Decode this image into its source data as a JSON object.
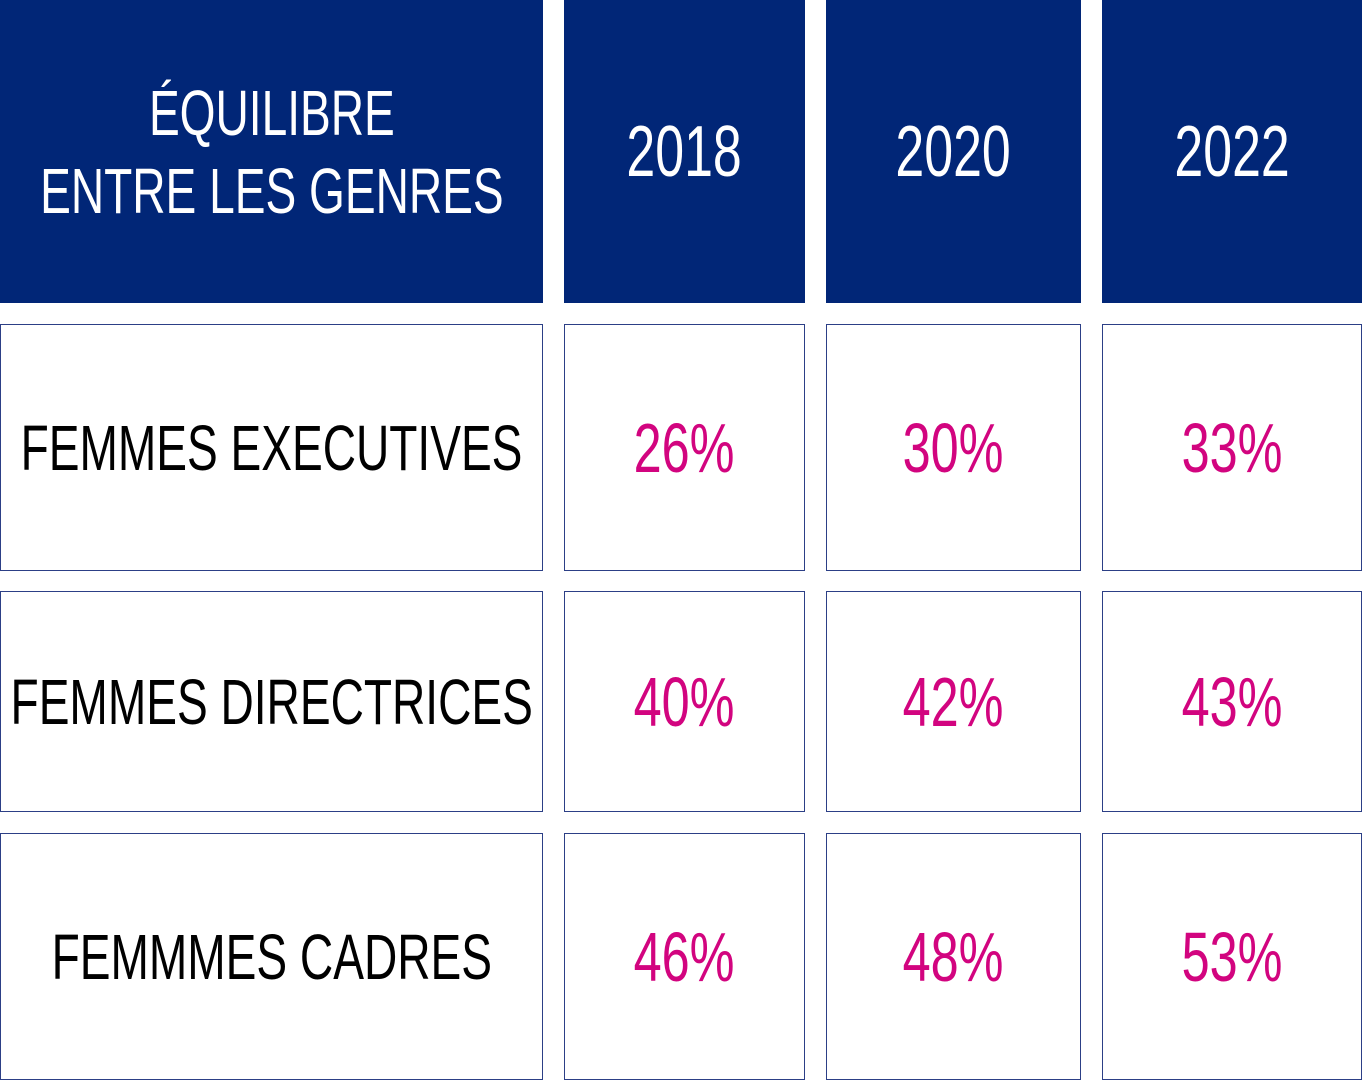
{
  "chart_data": {
    "type": "table",
    "title_lines": [
      "ÉQUILIBRE",
      "ENTRE LES GENRES"
    ],
    "columns": [
      "2018",
      "2020",
      "2022"
    ],
    "rows": [
      {
        "label": "FEMMES EXECUTIVES",
        "values": [
          "26%",
          "30%",
          "33%"
        ]
      },
      {
        "label": "FEMMES DIRECTRICES",
        "values": [
          "40%",
          "42%",
          "43%"
        ]
      },
      {
        "label": "FEMMMES CADRES",
        "values": [
          "46%",
          "48%",
          "53%"
        ]
      }
    ]
  },
  "colors": {
    "header_bg": "#012677",
    "header_text": "#ffffff",
    "value_text": "#d2047f",
    "label_text": "#000000",
    "cell_border": "#2c3f86"
  }
}
